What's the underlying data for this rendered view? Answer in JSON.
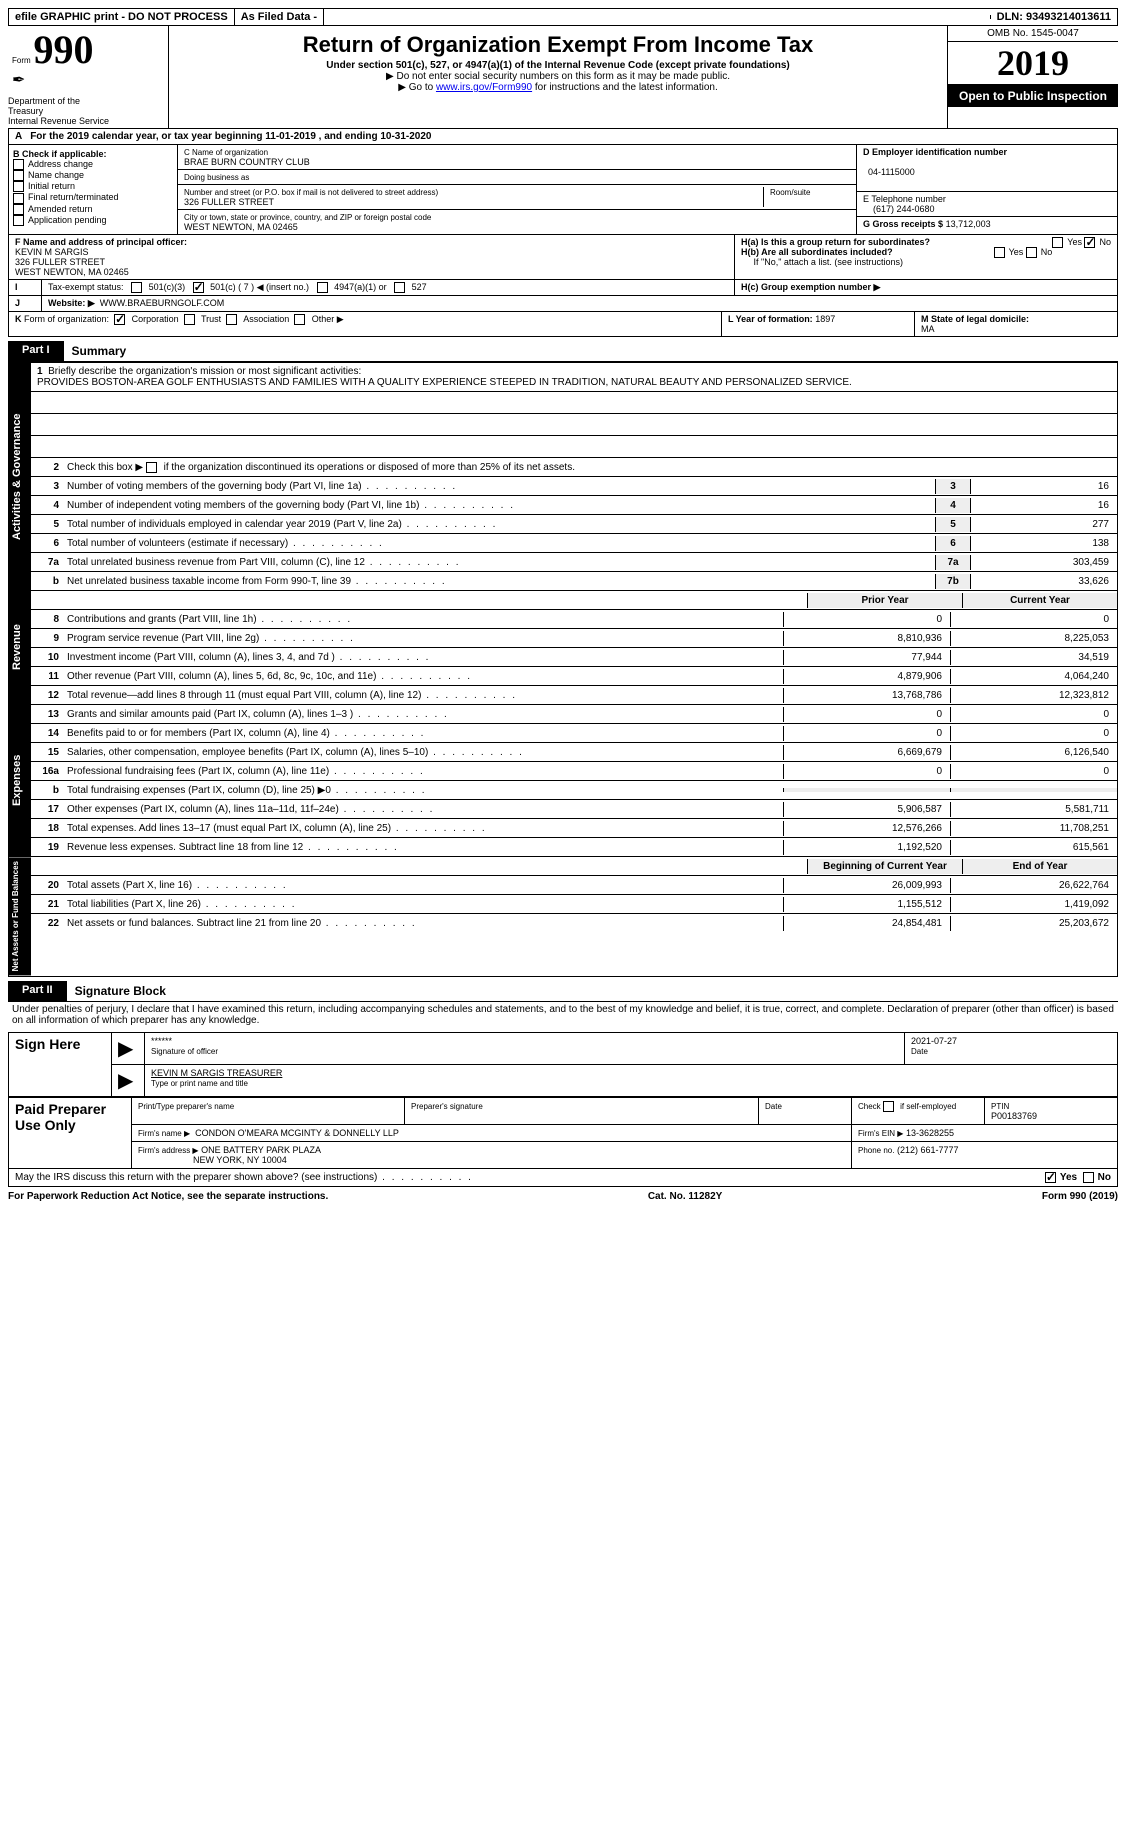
{
  "topbar": {
    "efile": "efile GRAPHIC print - DO NOT PROCESS",
    "asfiled": "As Filed Data -",
    "dln": "DLN: 93493214013611"
  },
  "header": {
    "form_word": "Form",
    "form_no": "990",
    "dept": "Department of the Treasury\nInternal Revenue Service",
    "title": "Return of Organization Exempt From Income Tax",
    "sub1": "Under section 501(c), 527, or 4947(a)(1) of the Internal Revenue Code (except private foundations)",
    "sub2": "▶ Do not enter social security numbers on this form as it may be made public.",
    "sub3_pre": "▶ Go to ",
    "sub3_link": "www.irs.gov/Form990",
    "sub3_post": " for instructions and the latest information.",
    "omb": "OMB No. 1545-0047",
    "year": "2019",
    "open": "Open to Public Inspection"
  },
  "A": {
    "text": "For the 2019 calendar year, or tax year beginning 11-01-2019  , and ending 10-31-2020"
  },
  "B": {
    "hdr": "B Check if applicable:",
    "items": [
      "Address change",
      "Name change",
      "Initial return",
      "Final return/terminated",
      "Amended return",
      "Application pending"
    ]
  },
  "C": {
    "name_label": "C Name of organization",
    "name": "BRAE BURN COUNTRY CLUB",
    "dba_label": "Doing business as",
    "addr_label": "Number and street (or P.O. box if mail is not delivered to street address)",
    "room_label": "Room/suite",
    "addr": "326 FULLER STREET",
    "city_label": "City or town, state or province, country, and ZIP or foreign postal code",
    "city": "WEST NEWTON, MA  02465"
  },
  "D": {
    "label": "D Employer identification number",
    "val": "04-1115000"
  },
  "E": {
    "label": "E Telephone number",
    "val": "(617) 244-0680"
  },
  "G": {
    "label": "G Gross receipts $",
    "val": "13,712,003"
  },
  "F": {
    "label": "F  Name and address of principal officer:",
    "name": "KEVIN M SARGIS",
    "addr1": "326 FULLER STREET",
    "addr2": "WEST NEWTON, MA  02465"
  },
  "H": {
    "a": "H(a)  Is this a group return for subordinates?",
    "b": "H(b)  Are all subordinates included?",
    "ifno": "If \"No,\" attach a list. (see instructions)",
    "c": "H(c)  Group exemption number ▶",
    "yes": "Yes",
    "no": "No"
  },
  "I": {
    "label": "Tax-exempt status:",
    "opts": [
      "501(c)(3)",
      "501(c) ( 7 ) ◀ (insert no.)",
      "4947(a)(1) or",
      "527"
    ]
  },
  "J": {
    "label": "Website: ▶",
    "val": "WWW.BRAEBURNGOLF.COM"
  },
  "K": {
    "label": "Form of organization:",
    "opts": [
      "Corporation",
      "Trust",
      "Association",
      "Other ▶"
    ]
  },
  "L": {
    "label": "L Year of formation:",
    "val": "1897"
  },
  "M": {
    "label": "M State of legal domicile:",
    "val": "MA"
  },
  "part1": {
    "tab": "Part I",
    "title": "Summary",
    "q1": "Briefly describe the organization's mission or most significant activities:",
    "mission": "PROVIDES BOSTON-AREA GOLF ENTHUSIASTS AND FAMILIES WITH A QUALITY EXPERIENCE STEEPED IN TRADITION, NATURAL BEAUTY AND PERSONALIZED SERVICE.",
    "q2": "Check this box ▶     if the organization discontinued its operations or disposed of more than 25% of its net assets.",
    "rows_ag": [
      {
        "n": "3",
        "t": "Number of voting members of the governing body (Part VI, line 1a)",
        "box": "3",
        "v": "16"
      },
      {
        "n": "4",
        "t": "Number of independent voting members of the governing body (Part VI, line 1b)",
        "box": "4",
        "v": "16"
      },
      {
        "n": "5",
        "t": "Total number of individuals employed in calendar year 2019 (Part V, line 2a)",
        "box": "5",
        "v": "277"
      },
      {
        "n": "6",
        "t": "Total number of volunteers (estimate if necessary)",
        "box": "6",
        "v": "138"
      },
      {
        "n": "7a",
        "t": "Total unrelated business revenue from Part VIII, column (C), line 12",
        "box": "7a",
        "v": "303,459"
      },
      {
        "n": "b",
        "t": "Net unrelated business taxable income from Form 990-T, line 39",
        "box": "7b",
        "v": "33,626"
      }
    ],
    "yr_hdr": {
      "prior": "Prior Year",
      "curr": "Current Year"
    },
    "rows_rev": [
      {
        "n": "8",
        "t": "Contributions and grants (Part VIII, line 1h)",
        "p": "0",
        "c": "0"
      },
      {
        "n": "9",
        "t": "Program service revenue (Part VIII, line 2g)",
        "p": "8,810,936",
        "c": "8,225,053"
      },
      {
        "n": "10",
        "t": "Investment income (Part VIII, column (A), lines 3, 4, and 7d )",
        "p": "77,944",
        "c": "34,519"
      },
      {
        "n": "11",
        "t": "Other revenue (Part VIII, column (A), lines 5, 6d, 8c, 9c, 10c, and 11e)",
        "p": "4,879,906",
        "c": "4,064,240"
      },
      {
        "n": "12",
        "t": "Total revenue—add lines 8 through 11 (must equal Part VIII, column (A), line 12)",
        "p": "13,768,786",
        "c": "12,323,812"
      }
    ],
    "rows_exp": [
      {
        "n": "13",
        "t": "Grants and similar amounts paid (Part IX, column (A), lines 1–3 )",
        "p": "0",
        "c": "0"
      },
      {
        "n": "14",
        "t": "Benefits paid to or for members (Part IX, column (A), line 4)",
        "p": "0",
        "c": "0"
      },
      {
        "n": "15",
        "t": "Salaries, other compensation, employee benefits (Part IX, column (A), lines 5–10)",
        "p": "6,669,679",
        "c": "6,126,540"
      },
      {
        "n": "16a",
        "t": "Professional fundraising fees (Part IX, column (A), line 11e)",
        "p": "0",
        "c": "0"
      },
      {
        "n": "b",
        "t": "Total fundraising expenses (Part IX, column (D), line 25) ▶0",
        "p": "",
        "c": ""
      },
      {
        "n": "17",
        "t": "Other expenses (Part IX, column (A), lines 11a–11d, 11f–24e)",
        "p": "5,906,587",
        "c": "5,581,711"
      },
      {
        "n": "18",
        "t": "Total expenses. Add lines 13–17 (must equal Part IX, column (A), line 25)",
        "p": "12,576,266",
        "c": "11,708,251"
      },
      {
        "n": "19",
        "t": "Revenue less expenses. Subtract line 18 from line 12",
        "p": "1,192,520",
        "c": "615,561"
      }
    ],
    "yr_hdr2": {
      "prior": "Beginning of Current Year",
      "curr": "End of Year"
    },
    "rows_na": [
      {
        "n": "20",
        "t": "Total assets (Part X, line 16)",
        "p": "26,009,993",
        "c": "26,622,764"
      },
      {
        "n": "21",
        "t": "Total liabilities (Part X, line 26)",
        "p": "1,155,512",
        "c": "1,419,092"
      },
      {
        "n": "22",
        "t": "Net assets or fund balances. Subtract line 21 from line 20",
        "p": "24,854,481",
        "c": "25,203,672"
      }
    ],
    "vtabs": {
      "ag": "Activities & Governance",
      "rev": "Revenue",
      "exp": "Expenses",
      "na": "Net Assets or Fund Balances"
    }
  },
  "part2": {
    "tab": "Part II",
    "title": "Signature Block",
    "decl": "Under penalties of perjury, I declare that I have examined this return, including accompanying schedules and statements, and to the best of my knowledge and belief, it is true, correct, and complete. Declaration of preparer (other than officer) is based on all information of which preparer has any knowledge.",
    "sign_here": "Sign Here",
    "sig_stars": "******",
    "sig_officer": "Signature of officer",
    "sig_date": "2021-07-27",
    "date_lbl": "Date",
    "officer_name": "KEVIN M SARGIS TREASURER",
    "officer_sub": "Type or print name and title",
    "paid": "Paid Preparer Use Only",
    "prep_name_lbl": "Print/Type preparer's name",
    "prep_sig_lbl": "Preparer's signature",
    "check_if": "Check      if self-employed",
    "ptin_lbl": "PTIN",
    "ptin": "P00183769",
    "firm_name_lbl": "Firm's name    ▶",
    "firm_name": "CONDON O'MEARA MCGINTY & DONNELLY LLP",
    "firm_ein_lbl": "Firm's EIN ▶",
    "firm_ein": "13-3628255",
    "firm_addr_lbl": "Firm's address ▶",
    "firm_addr1": "ONE BATTERY PARK PLAZA",
    "firm_addr2": "NEW YORK, NY  10004",
    "phone_lbl": "Phone no.",
    "phone": "(212) 661-7777",
    "discuss": "May the IRS discuss this return with the preparer shown above? (see instructions)"
  },
  "footer": {
    "left": "For Paperwork Reduction Act Notice, see the separate instructions.",
    "mid": "Cat. No. 11282Y",
    "right": "Form 990 (2019)"
  }
}
